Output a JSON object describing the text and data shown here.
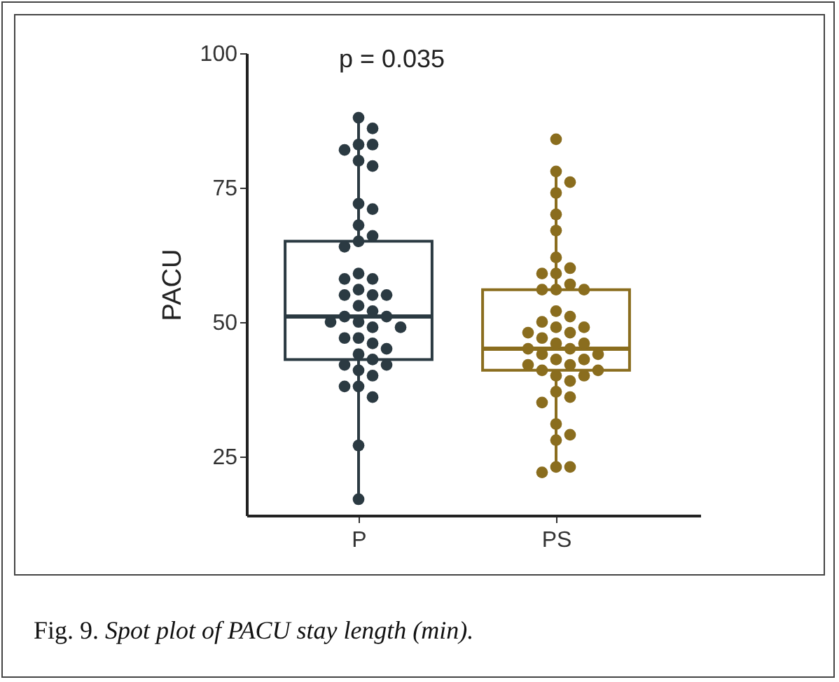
{
  "chart_data": {
    "type": "box",
    "ylabel": "PACU",
    "categories": [
      "P",
      "PS"
    ],
    "colors": [
      "#2b3a42",
      "#8a6d1e"
    ],
    "boxes": [
      {
        "low": 17,
        "q1": 43,
        "median": 51,
        "q3": 65,
        "high": 88
      },
      {
        "low": 23,
        "q1": 41,
        "median": 45,
        "q3": 56,
        "high": 78
      }
    ],
    "series": [
      {
        "type": "scatter",
        "color": "#2b3a42",
        "x": [
          "P",
          "P",
          "P",
          "P",
          "P",
          "P",
          "P",
          "P",
          "P",
          "P",
          "P",
          "P",
          "P",
          "P",
          "P",
          "P",
          "P",
          "P",
          "P",
          "P",
          "P",
          "P",
          "P",
          "P",
          "P",
          "P",
          "P",
          "P",
          "P",
          "P",
          "P",
          "P",
          "P",
          "P",
          "P",
          "P",
          "P",
          "P",
          "P",
          "P",
          "P",
          "P",
          "P"
        ],
        "values": [
          88,
          86,
          83,
          83,
          82,
          80,
          79,
          72,
          71,
          68,
          66,
          65,
          64,
          59,
          58,
          58,
          56,
          55,
          55,
          55,
          53,
          52,
          51,
          51,
          50,
          50,
          49,
          49,
          47,
          47,
          46,
          45,
          44,
          43,
          42,
          42,
          41,
          40,
          38,
          38,
          36,
          27,
          17
        ]
      },
      {
        "type": "scatter",
        "color": "#8a6d1e",
        "x": [
          "PS",
          "PS",
          "PS",
          "PS",
          "PS",
          "PS",
          "PS",
          "PS",
          "PS",
          "PS",
          "PS",
          "PS",
          "PS",
          "PS",
          "PS",
          "PS",
          "PS",
          "PS",
          "PS",
          "PS",
          "PS",
          "PS",
          "PS",
          "PS",
          "PS",
          "PS",
          "PS",
          "PS",
          "PS",
          "PS",
          "PS",
          "PS",
          "PS",
          "PS",
          "PS",
          "PS",
          "PS",
          "PS",
          "PS",
          "PS",
          "PS",
          "PS",
          "PS",
          "PS",
          "PS",
          "PS"
        ],
        "values": [
          84,
          78,
          76,
          74,
          70,
          67,
          62,
          60,
          59,
          59,
          57,
          56,
          56,
          56,
          52,
          51,
          50,
          49,
          49,
          48,
          48,
          47,
          46,
          46,
          45,
          45,
          44,
          44,
          43,
          43,
          42,
          42,
          41,
          41,
          40,
          40,
          39,
          37,
          36,
          35,
          31,
          29,
          28,
          23,
          23,
          22
        ]
      }
    ],
    "marker": "circle",
    "ylim": [
      14,
      100
    ],
    "yticks": [
      25,
      50,
      75,
      100
    ],
    "grid": false,
    "annotations": [
      "p = 0.035",
      "Fig. 9. Spot plot of PACU stay length (min)."
    ]
  }
}
